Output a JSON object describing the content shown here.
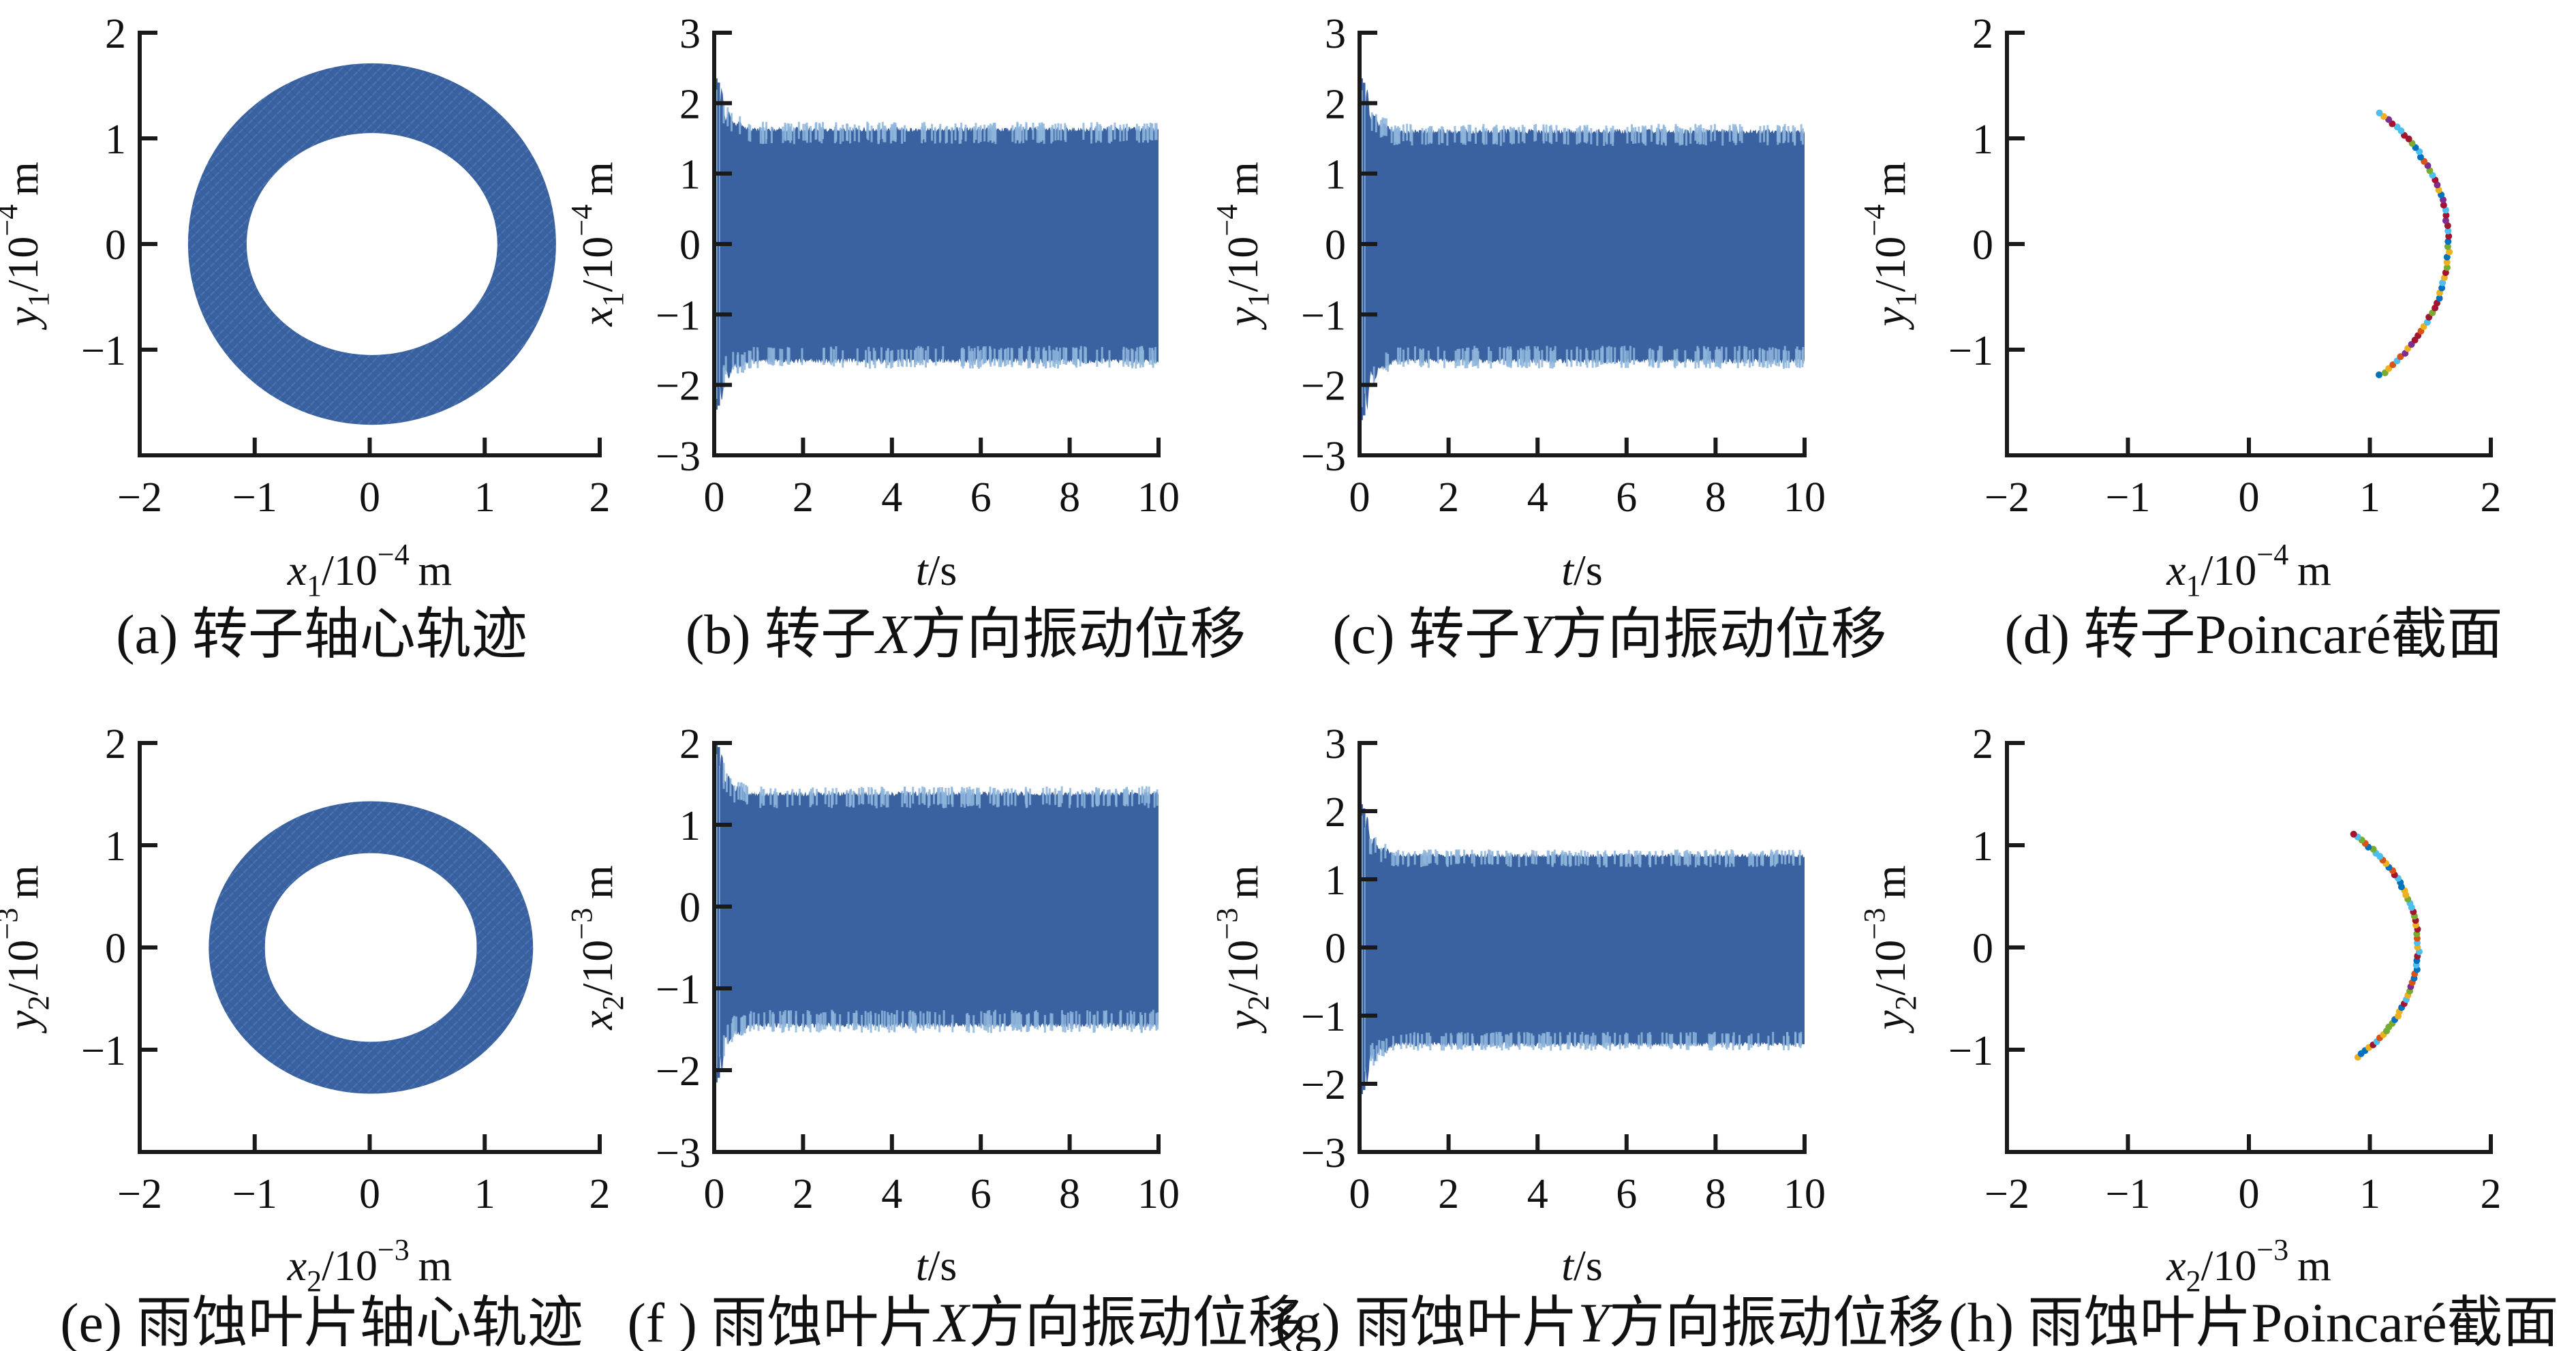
{
  "figure": {
    "background": "#ffffff",
    "series_color": "#3A62A1",
    "series_edge_color": "#8FB6DC",
    "axis_color": "#1a1a1a",
    "text_color": "#111111",
    "poincare_palette": [
      "#0072BD",
      "#D95319",
      "#EDB120",
      "#7E2F8E",
      "#77AC30",
      "#4DBEEE",
      "#A2142F"
    ]
  },
  "chart_data": [
    {
      "id": "a",
      "row": 0,
      "col": 0,
      "type": "orbit",
      "caption": "(a) 转子轴心轨迹",
      "xlabel": {
        "sym": "x",
        "sub": "1",
        "pow": "-4",
        "unit": "m"
      },
      "ylabel": {
        "sym": "y",
        "sub": "1",
        "pow": "-4",
        "unit": "m"
      },
      "xlim": [
        -2,
        2
      ],
      "ylim": [
        -2,
        2
      ],
      "xticks": [
        -2,
        -1,
        0,
        1,
        2
      ],
      "yticks": [
        -1,
        0,
        1,
        2
      ],
      "grid": false,
      "spines": "left-bottom",
      "data": {
        "center": [
          0.02,
          0
        ],
        "outer_rx": 1.6,
        "outer_ry": 1.71,
        "inner_rx": 1.09,
        "inner_ry": 1.05
      }
    },
    {
      "id": "b",
      "row": 0,
      "col": 1,
      "type": "timeseries",
      "caption": "(b) 转子X方向振动位移",
      "xlabel": {
        "sym": "t",
        "unit": "s"
      },
      "ylabel": {
        "sym": "x",
        "sub": "1",
        "pow": "-4",
        "unit": "m"
      },
      "xlim": [
        0,
        10
      ],
      "ylim": [
        -3,
        3
      ],
      "xticks": [
        0,
        2,
        4,
        6,
        8,
        10
      ],
      "yticks": [
        -3,
        -2,
        -1,
        0,
        1,
        2,
        3
      ],
      "grid": false,
      "spines": "left-bottom",
      "data": {
        "steady_top": 1.63,
        "steady_bottom": -1.66,
        "peak_top": 2.35,
        "peak_bottom": -2.35,
        "transient_end": 0.6,
        "seed": 11
      }
    },
    {
      "id": "c",
      "row": 0,
      "col": 2,
      "type": "timeseries",
      "caption": "(c) 转子Y方向振动位移",
      "xlabel": {
        "sym": "t",
        "unit": "s"
      },
      "ylabel": {
        "sym": "y",
        "sub": "1",
        "pow": "-4",
        "unit": "m"
      },
      "xlim": [
        0,
        10
      ],
      "ylim": [
        -3,
        3
      ],
      "xticks": [
        0,
        2,
        4,
        6,
        8,
        10
      ],
      "yticks": [
        -3,
        -2,
        -1,
        0,
        1,
        2,
        3
      ],
      "grid": false,
      "spines": "left-bottom",
      "data": {
        "steady_top": 1.6,
        "steady_bottom": -1.66,
        "peak_top": 2.35,
        "peak_bottom": -2.5,
        "transient_end": 0.6,
        "seed": 23
      }
    },
    {
      "id": "d",
      "row": 0,
      "col": 3,
      "type": "poincare",
      "caption": "(d) 转子Poincaré截面",
      "xlabel": {
        "sym": "x",
        "sub": "1",
        "pow": "-4",
        "unit": "m"
      },
      "ylabel": {
        "sym": "y",
        "sub": "1",
        "pow": "-4",
        "unit": "m"
      },
      "xlim": [
        -2,
        2
      ],
      "ylim": [
        -2,
        2
      ],
      "xticks": [
        -2,
        -1,
        0,
        1,
        2
      ],
      "yticks": [
        -1,
        0,
        1,
        2
      ],
      "grid": false,
      "spines": "left-bottom",
      "data": {
        "radius": 1.65,
        "angle_start_deg": -49,
        "angle_end_deg": 49,
        "num_points": 58,
        "dot_radius_px": 5,
        "seed": 7
      }
    },
    {
      "id": "e",
      "row": 1,
      "col": 0,
      "type": "orbit",
      "caption": "(e) 雨蚀叶片轴心轨迹",
      "xlabel": {
        "sym": "x",
        "sub": "2",
        "pow": "-3",
        "unit": "m"
      },
      "ylabel": {
        "sym": "y",
        "sub": "2",
        "pow": "-3",
        "unit": "m"
      },
      "xlim": [
        -2,
        2
      ],
      "ylim": [
        -2,
        2
      ],
      "xticks": [
        -2,
        -1,
        0,
        1,
        2
      ],
      "yticks": [
        -1,
        0,
        1,
        2
      ],
      "grid": false,
      "spines": "left-bottom",
      "data": {
        "center": [
          0.01,
          0
        ],
        "outer_rx": 1.41,
        "outer_ry": 1.43,
        "inner_rx": 0.92,
        "inner_ry": 0.9
      }
    },
    {
      "id": "f",
      "row": 1,
      "col": 1,
      "type": "timeseries",
      "caption": "(f ) 雨蚀叶片X方向振动位移",
      "xlabel": {
        "sym": "t",
        "unit": "s"
      },
      "ylabel": {
        "sym": "x",
        "sub": "2",
        "pow": "-3",
        "unit": "m"
      },
      "xlim": [
        0,
        10
      ],
      "ylim": [
        -3,
        2
      ],
      "xticks": [
        0,
        2,
        4,
        6,
        8,
        10
      ],
      "yticks": [
        -3,
        -2,
        -1,
        0,
        1,
        2
      ],
      "grid": false,
      "spines": "left-bottom",
      "data": {
        "steady_top": 1.38,
        "steady_bottom": -1.45,
        "peak_top": 2.0,
        "peak_bottom": -2.15,
        "transient_end": 0.6,
        "seed": 31
      }
    },
    {
      "id": "g",
      "row": 1,
      "col": 2,
      "type": "timeseries",
      "caption": "(g) 雨蚀叶片Y方向振动位移",
      "xlabel": {
        "sym": "t",
        "unit": "s"
      },
      "ylabel": {
        "sym": "y",
        "sub": "2",
        "pow": "-3",
        "unit": "m"
      },
      "xlim": [
        0,
        10
      ],
      "ylim": [
        -3,
        3
      ],
      "xticks": [
        0,
        2,
        4,
        6,
        8,
        10
      ],
      "yticks": [
        -3,
        -2,
        -1,
        0,
        1,
        2,
        3
      ],
      "grid": false,
      "spines": "left-bottom",
      "data": {
        "steady_top": 1.35,
        "steady_bottom": -1.42,
        "peak_top": 2.1,
        "peak_bottom": -2.15,
        "transient_end": 0.6,
        "seed": 43
      }
    },
    {
      "id": "h",
      "row": 1,
      "col": 3,
      "type": "poincare",
      "caption": "(h) 雨蚀叶片Poincaré截面",
      "xlabel": {
        "sym": "x",
        "sub": "2",
        "pow": "-3",
        "unit": "m"
      },
      "ylabel": {
        "sym": "y",
        "sub": "2",
        "pow": "-3",
        "unit": "m"
      },
      "xlim": [
        -2,
        2
      ],
      "ylim": [
        -2,
        2
      ],
      "xticks": [
        -2,
        -1,
        0,
        1,
        2
      ],
      "yticks": [
        -1,
        0,
        1,
        2
      ],
      "grid": false,
      "spines": "left-bottom",
      "data": {
        "radius": 1.4,
        "angle_start_deg": -50,
        "angle_end_deg": 52,
        "num_points": 58,
        "dot_radius_px": 5,
        "seed": 13
      }
    }
  ]
}
